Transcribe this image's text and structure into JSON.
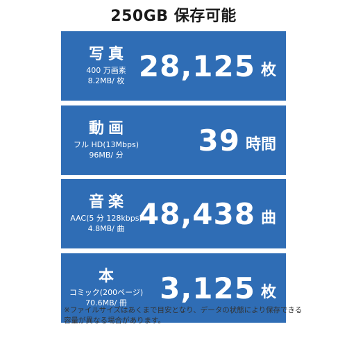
{
  "title": "250GB 保存可能",
  "cards": [
    {
      "label": "写真",
      "detail_lines": [
        "400 万画素",
        "8.2MB/ 枚"
      ],
      "value": "28,125",
      "unit": "枚"
    },
    {
      "label": "動画",
      "detail_lines": [
        "フル HD(13Mbps)",
        "96MB/ 分"
      ],
      "value": "39",
      "unit": "時間"
    },
    {
      "label": "音楽",
      "detail_lines": [
        "AAC(5 分 128kbps)",
        "4.8MB/ 曲"
      ],
      "value": "48,438",
      "unit": "曲"
    },
    {
      "label": "本",
      "detail_lines": [
        "コミック(200ページ)",
        "70.6MB/ 冊"
      ],
      "value": "3,125",
      "unit": "枚"
    }
  ],
  "note": {
    "lines": [
      "※ファイルサイズはあくまで目安となり、データの状態により保存できる",
      "容量が異なる場合があります。"
    ]
  },
  "colors": {
    "card_background": "#2f6db5",
    "card_text": "#ffffff",
    "title_text": "#1a1a1a"
  }
}
